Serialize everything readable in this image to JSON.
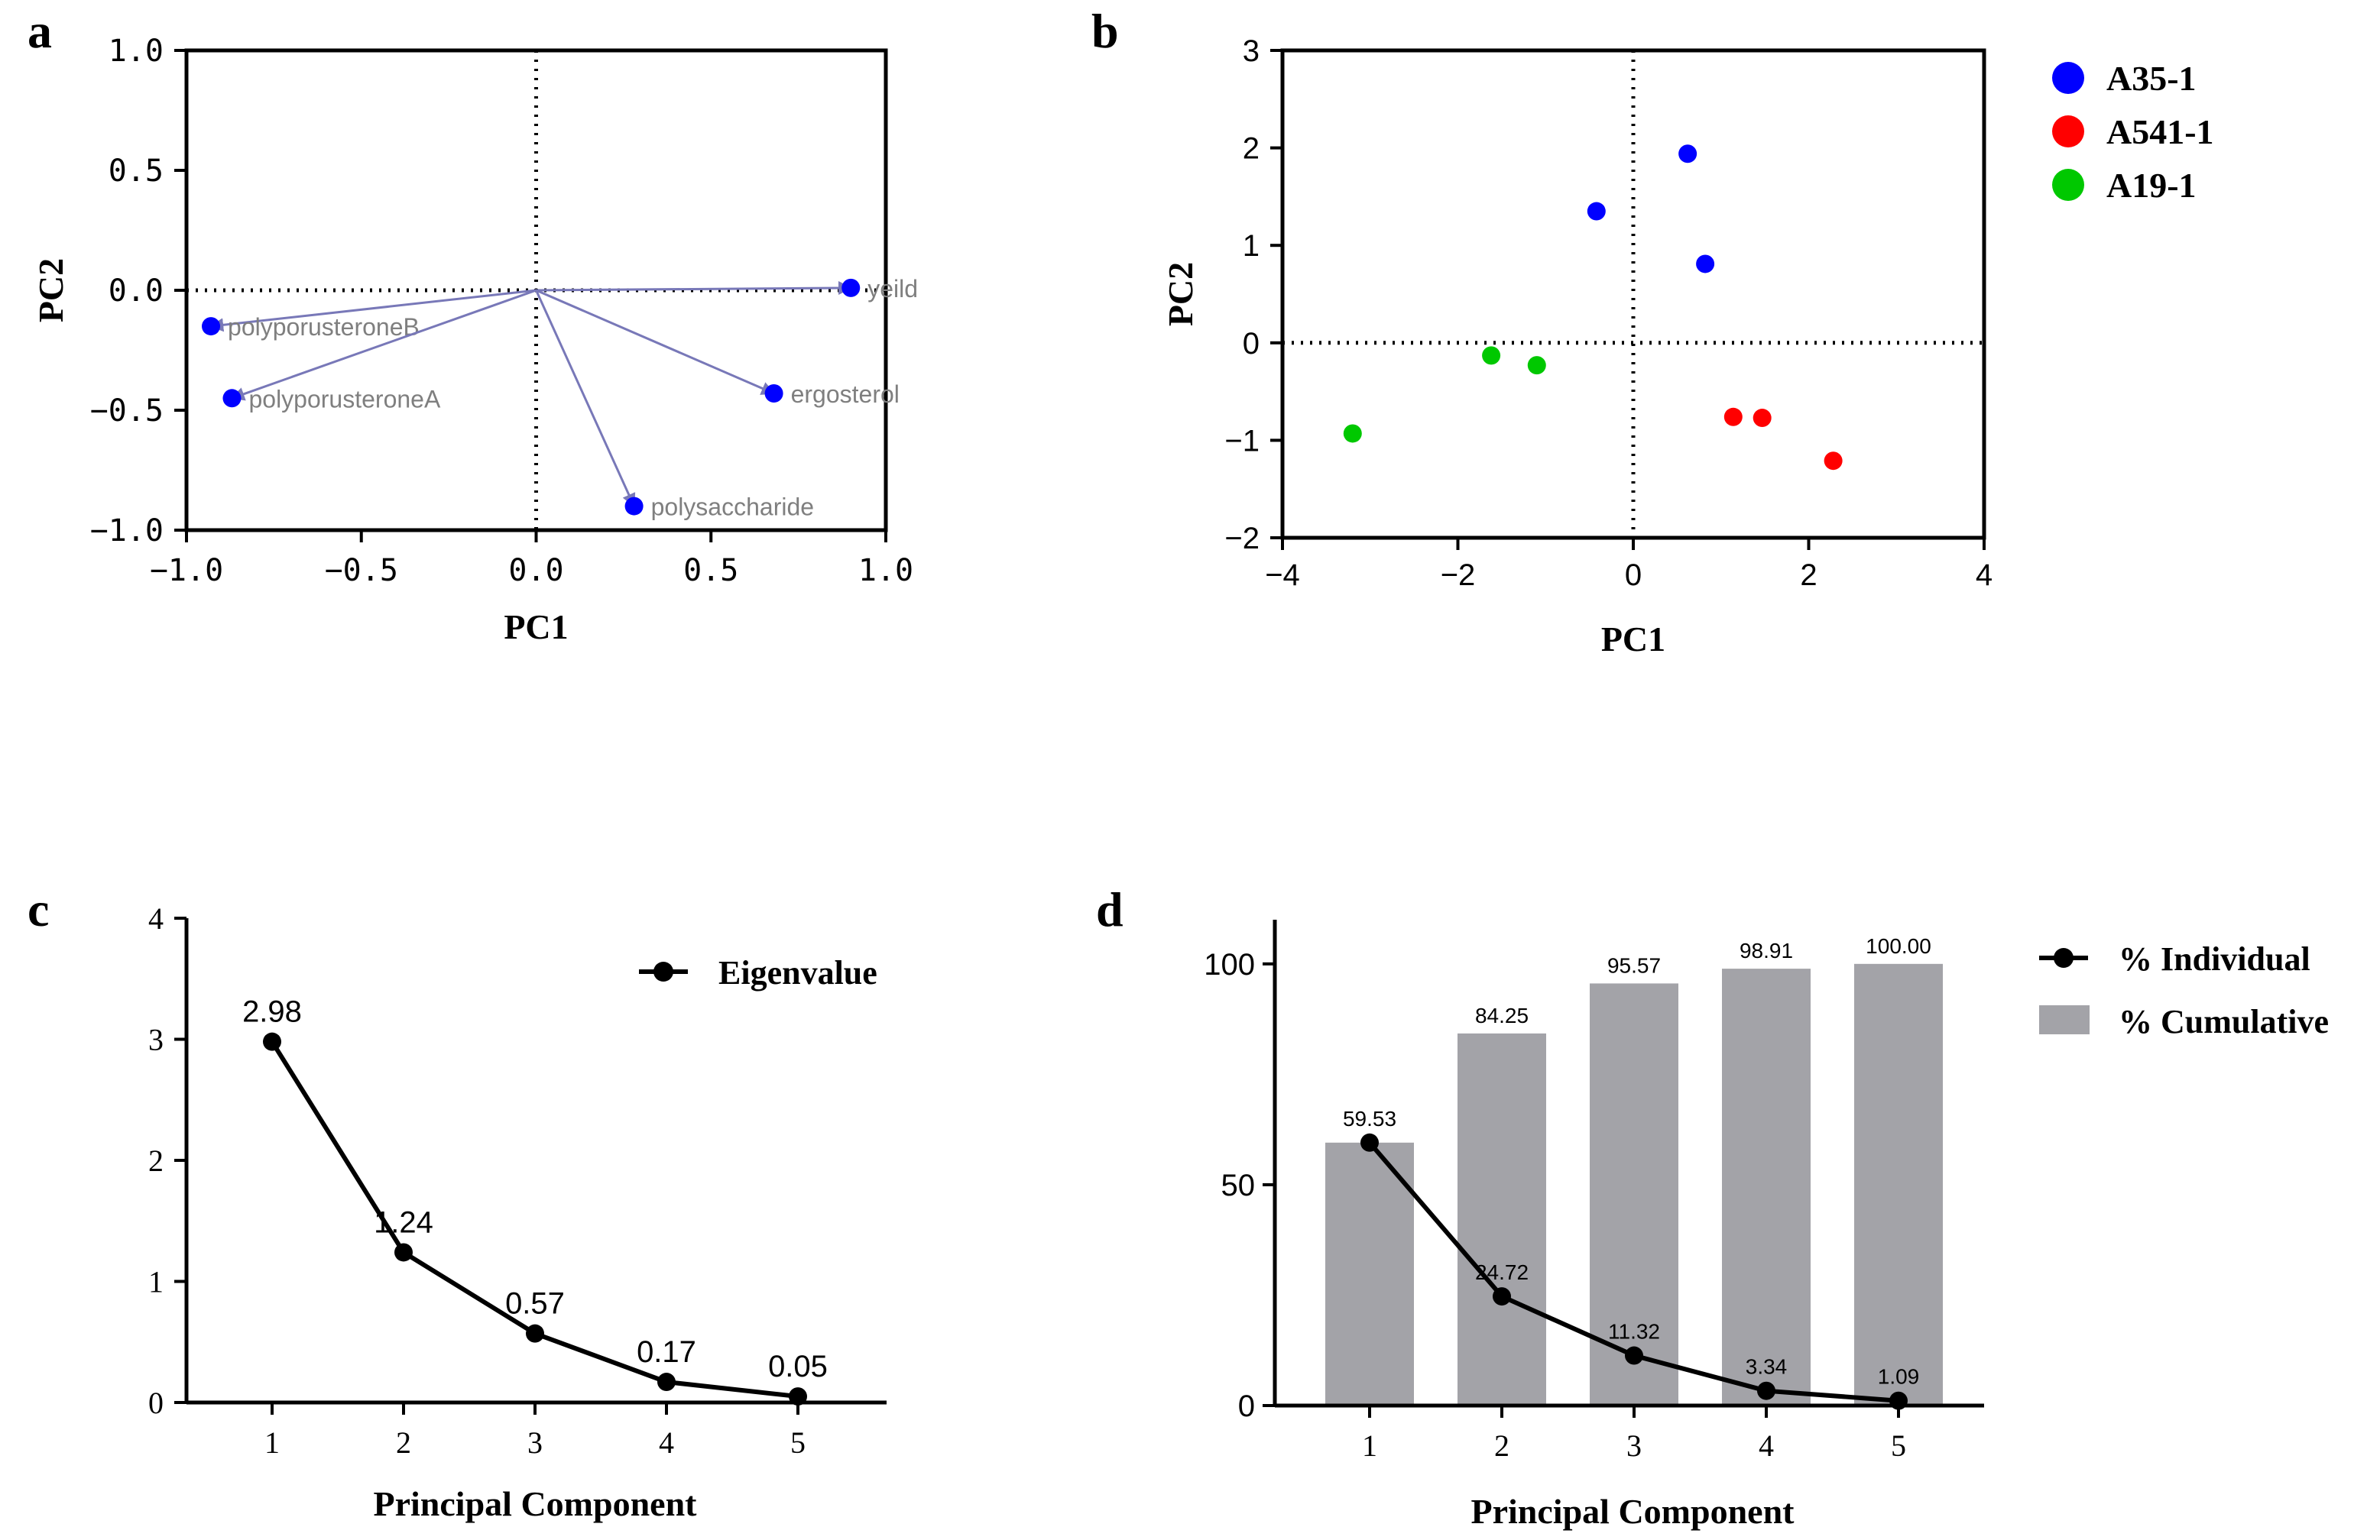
{
  "colors": {
    "axis": "#000000",
    "point_blue": "#0000ff",
    "point_red": "#ff0000",
    "point_green": "#00c800",
    "arrow": "#7878b8",
    "var_label": "#7f7f7f",
    "bar": "#a3a3a8"
  },
  "chart_data": [
    {
      "panel": "a",
      "type": "scatter",
      "subtype": "loadings-biplot",
      "xlabel": "PC1",
      "ylabel": "PC2",
      "xlim": [
        -1.0,
        1.0
      ],
      "ylim": [
        -1.0,
        1.0
      ],
      "xticks": [
        "−1.0",
        "−0.5",
        "0.0",
        "0.5",
        "1.0"
      ],
      "yticks": [
        "−1.0",
        "−0.5",
        "0.0",
        "0.5",
        "1.0"
      ],
      "reference_lines": [
        "x=0",
        "y=0"
      ],
      "points": [
        {
          "name": "yeild",
          "x": 0.9,
          "y": 0.01
        },
        {
          "name": "polyporusteroneB",
          "x": -0.93,
          "y": -0.15
        },
        {
          "name": "polyporusteroneA",
          "x": -0.87,
          "y": -0.45
        },
        {
          "name": "ergosterol",
          "x": 0.68,
          "y": -0.43
        },
        {
          "name": "polysaccharide",
          "x": 0.28,
          "y": -0.9
        }
      ]
    },
    {
      "panel": "b",
      "type": "scatter",
      "subtype": "scores",
      "xlabel": "PC1",
      "ylabel": "PC2",
      "xlim": [
        -4,
        4
      ],
      "ylim": [
        -2,
        3
      ],
      "xticks": [
        "−4",
        "−2",
        "0",
        "2",
        "4"
      ],
      "yticks": [
        "−2",
        "−1",
        "0",
        "1",
        "2",
        "3"
      ],
      "reference_lines": [
        "x=0",
        "y=0"
      ],
      "legend_position": "right",
      "series": [
        {
          "name": "A35-1",
          "color": "#0000ff",
          "points": [
            {
              "x": -0.42,
              "y": 1.35
            },
            {
              "x": 0.62,
              "y": 1.94
            },
            {
              "x": 0.82,
              "y": 0.81
            }
          ]
        },
        {
          "name": "A541-1",
          "color": "#ff0000",
          "points": [
            {
              "x": 1.14,
              "y": -0.76
            },
            {
              "x": 1.47,
              "y": -0.77
            },
            {
              "x": 2.28,
              "y": -1.21
            }
          ]
        },
        {
          "name": "A19-1",
          "color": "#00c800",
          "points": [
            {
              "x": -3.2,
              "y": -0.93
            },
            {
              "x": -1.62,
              "y": -0.13
            },
            {
              "x": -1.1,
              "y": -0.23
            }
          ]
        }
      ]
    },
    {
      "panel": "c",
      "type": "line",
      "xlabel": "Principal Component",
      "ylabel": "",
      "categories": [
        "1",
        "2",
        "3",
        "4",
        "5"
      ],
      "ylim": [
        0,
        4
      ],
      "yticks": [
        "0",
        "1",
        "2",
        "3",
        "4"
      ],
      "legend_position": "top-right",
      "series": [
        {
          "name": "Eigenvalue",
          "values": [
            2.98,
            1.24,
            0.57,
            0.17,
            0.05
          ],
          "labels": [
            "2.98",
            "1.24",
            "0.57",
            "0.17",
            "0.05"
          ]
        }
      ]
    },
    {
      "panel": "d",
      "type": "bar",
      "xlabel": "Principal Component",
      "ylabel": "",
      "categories": [
        "1",
        "2",
        "3",
        "4",
        "5"
      ],
      "ylim": [
        0,
        110
      ],
      "yticks": [
        "0",
        "50",
        "100"
      ],
      "legend_position": "top-right",
      "series": [
        {
          "name": "% Individual",
          "kind": "line",
          "values": [
            59.53,
            24.72,
            11.32,
            3.34,
            1.09
          ],
          "labels": [
            "59.53",
            "24.72",
            "11.32",
            "3.34",
            "1.09"
          ]
        },
        {
          "name": "% Cumulative",
          "kind": "bar",
          "values": [
            59.53,
            84.25,
            95.57,
            98.91,
            100.0
          ],
          "labels": [
            "",
            "84.25",
            "95.57",
            "98.91",
            "100.00"
          ]
        }
      ]
    }
  ]
}
